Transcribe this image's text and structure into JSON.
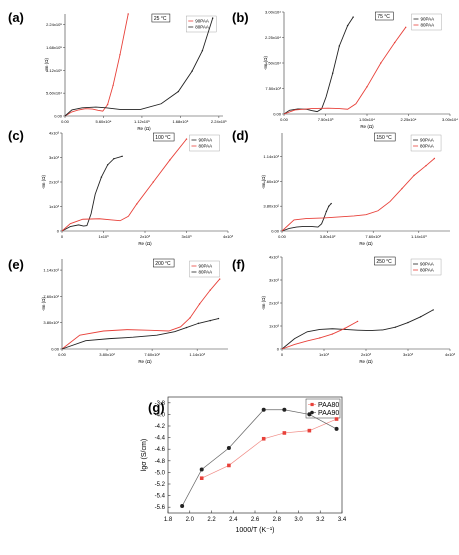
{
  "colors": {
    "red": "#e8413a",
    "black": "#222222"
  },
  "chart_data": [
    {
      "type": "scatter",
      "label": "(a)",
      "temperature": "25 °C",
      "xlabel": "Re (Ω)",
      "ylabel": "-Im (Ω)",
      "xlim": [
        0,
        230000
      ],
      "ylim": [
        0,
        250000
      ],
      "xticks": [
        "0.00",
        "5.60x10⁴",
        "1.12x10⁵",
        "1.68x10⁵",
        "2.24x10⁵"
      ],
      "yticks": [
        "0.00",
        "5.60x10⁴",
        "1.12x10⁵",
        "1.68x10⁵",
        "2.24x10⁵"
      ],
      "xtickvals": [
        0,
        56000,
        112000,
        168000,
        224000
      ],
      "ytickvals": [
        0,
        56000,
        112000,
        168000,
        224000
      ],
      "series": [
        {
          "name": "90PAA",
          "color": "red",
          "x": [
            0,
            10000,
            20000,
            30000,
            40000,
            48000,
            55000,
            62000,
            70000,
            80000,
            92000
          ],
          "y": [
            0,
            10000,
            15000,
            18000,
            17000,
            14000,
            12000,
            28000,
            75000,
            150000,
            250000
          ]
        },
        {
          "name": "80PAA",
          "color": "black",
          "x": [
            0,
            10000,
            25000,
            45000,
            60000,
            80000,
            110000,
            140000,
            165000,
            185000,
            200000,
            215000
          ],
          "y": [
            0,
            15000,
            20000,
            22000,
            20000,
            16000,
            16000,
            30000,
            60000,
            110000,
            160000,
            240000
          ]
        }
      ]
    },
    {
      "type": "scatter",
      "label": "(b)",
      "temperature": "75 °C",
      "xlabel": "Re (Ω)",
      "ylabel": "-Im (Ω)",
      "xlim": [
        0,
        30000
      ],
      "ylim": [
        0,
        30000
      ],
      "xticks": [
        "0.00",
        "7.50x10³",
        "1.50x10⁴",
        "2.25x10⁴",
        "3.00x10⁴"
      ],
      "yticks": [
        "0.00",
        "7.50x10³",
        "1.50x10⁴",
        "2.25x10⁴",
        "3.00x10⁴"
      ],
      "xtickvals": [
        0,
        7500,
        15000,
        22500,
        30000
      ],
      "ytickvals": [
        0,
        7500,
        15000,
        22500,
        30000
      ],
      "series": [
        {
          "name": "90PAA",
          "color": "black",
          "x": [
            0,
            1000,
            2500,
            4000,
            5000,
            6000,
            6800,
            7600,
            8800,
            10000,
            11500,
            12500
          ],
          "y": [
            0,
            1100,
            1500,
            1400,
            1000,
            700,
            1500,
            5000,
            12000,
            20000,
            26000,
            28500
          ]
        },
        {
          "name": "80PAA",
          "color": "red",
          "x": [
            0,
            2000,
            5000,
            8000,
            10000,
            11500,
            13000,
            15000,
            17500,
            20000,
            22000
          ],
          "y": [
            0,
            1200,
            1600,
            1700,
            1600,
            1400,
            3000,
            8000,
            15000,
            21000,
            25500
          ]
        }
      ]
    },
    {
      "type": "scatter",
      "label": "(c)",
      "temperature": "100 °C",
      "xlabel": "Re (Ω)",
      "ylabel": "-Im (Ω)",
      "xlim": [
        0,
        4000
      ],
      "ylim": [
        0,
        4000
      ],
      "xticks": [
        "0",
        "1x10³",
        "2x10³",
        "3x10³",
        "4x10³"
      ],
      "yticks": [
        "0",
        "1x10³",
        "2x10³",
        "3x10³",
        "4x10³"
      ],
      "xtickvals": [
        0,
        1000,
        2000,
        3000,
        4000
      ],
      "ytickvals": [
        0,
        1000,
        2000,
        3000,
        4000
      ],
      "series": [
        {
          "name": "90PAA",
          "color": "black",
          "x": [
            0,
            200,
            400,
            520,
            600,
            700,
            800,
            950,
            1100,
            1250,
            1450
          ],
          "y": [
            0,
            180,
            250,
            200,
            220,
            700,
            1500,
            2200,
            2700,
            2950,
            3050
          ]
        },
        {
          "name": "80PAA",
          "color": "red",
          "x": [
            0,
            200,
            500,
            900,
            1200,
            1400,
            1600,
            1800,
            2200,
            2600,
            3000
          ],
          "y": [
            0,
            300,
            480,
            500,
            450,
            420,
            600,
            1100,
            2000,
            2900,
            3750
          ]
        }
      ]
    },
    {
      "type": "scatter",
      "label": "(d)",
      "temperature": "150 °C",
      "xlabel": "Re (Ω)",
      "ylabel": "-Im (Ω)",
      "xlim": [
        0,
        1400
      ],
      "ylim": [
        0,
        1500
      ],
      "xticks": [
        "0.00",
        "3.80x10²",
        "7.60x10²",
        "1.14x10³"
      ],
      "yticks": [
        "0.00",
        "3.80x10²",
        "7.60x10²",
        "1.14x10³"
      ],
      "xtickvals": [
        0,
        380,
        760,
        1140
      ],
      "ytickvals": [
        0,
        380,
        760,
        1140
      ],
      "series": [
        {
          "name": "90PAA",
          "color": "black",
          "x": [
            0,
            60,
            120,
            180,
            240,
            300,
            330,
            350,
            370,
            390,
            410
          ],
          "y": [
            0,
            40,
            60,
            70,
            70,
            60,
            110,
            200,
            300,
            380,
            420
          ]
        },
        {
          "name": "80PAA",
          "color": "red",
          "x": [
            0,
            100,
            200,
            350,
            600,
            700,
            800,
            900,
            1000,
            1100,
            1200,
            1270
          ],
          "y": [
            0,
            170,
            190,
            200,
            230,
            250,
            310,
            450,
            650,
            850,
            1000,
            1110
          ]
        }
      ]
    },
    {
      "type": "scatter",
      "label": "(e)",
      "temperature": "200 °C",
      "xlabel": "Re (Ω)",
      "ylabel": "-Im (Ω)",
      "xlim": [
        0,
        1400
      ],
      "ylim": [
        0,
        1300
      ],
      "xticks": [
        "0.00",
        "3.80x10²",
        "7.60x10²",
        "1.14x10³"
      ],
      "yticks": [
        "0.00",
        "3.80x10²",
        "7.60x10²",
        "1.14x10³"
      ],
      "xtickvals": [
        0,
        380,
        760,
        1140
      ],
      "ytickvals": [
        0,
        380,
        760,
        1140
      ],
      "series": [
        {
          "name": "90PAA",
          "color": "red",
          "x": [
            0,
            150,
            350,
            550,
            750,
            900,
            1000,
            1080,
            1160,
            1250,
            1330
          ],
          "y": [
            0,
            200,
            260,
            280,
            270,
            260,
            320,
            450,
            650,
            850,
            1010
          ]
        },
        {
          "name": "80PAA",
          "color": "black",
          "x": [
            0,
            200,
            400,
            600,
            800,
            950,
            1050,
            1150,
            1250,
            1320
          ],
          "y": [
            0,
            120,
            150,
            170,
            200,
            250,
            310,
            370,
            410,
            440
          ]
        }
      ]
    },
    {
      "type": "scatter",
      "label": "(f)",
      "temperature": "250 °C",
      "xlabel": "Re (Ω)",
      "ylabel": "-Im (Ω)",
      "xlim": [
        0,
        4000
      ],
      "ylim": [
        0,
        4000
      ],
      "xticks": [
        "0",
        "1x10³",
        "2x10³",
        "3x10³",
        "4x10³"
      ],
      "yticks": [
        "0",
        "1x10³",
        "2x10³",
        "3x10³",
        "4x10³"
      ],
      "xtickvals": [
        0,
        1000,
        2000,
        3000,
        4000
      ],
      "ytickvals": [
        0,
        1000,
        2000,
        3000,
        4000
      ],
      "series": [
        {
          "name": "90PAA",
          "color": "black",
          "x": [
            0,
            300,
            600,
            900,
            1200,
            1500,
            1800,
            2100,
            2400,
            2700,
            3000,
            3300,
            3600
          ],
          "y": [
            0,
            450,
            750,
            850,
            880,
            850,
            820,
            800,
            830,
            950,
            1150,
            1400,
            1700
          ]
        },
        {
          "name": "80PAA",
          "color": "red",
          "x": [
            0,
            300,
            600,
            900,
            1200,
            1500,
            1800
          ],
          "y": [
            0,
            200,
            350,
            480,
            650,
            900,
            1200
          ]
        }
      ]
    },
    {
      "type": "line",
      "label": "(g)",
      "xlabel": "1000/T (K⁻¹)",
      "ylabel": "lgσ (S/cm)",
      "xlim": [
        1.8,
        3.4
      ],
      "ylim": [
        -5.7,
        -3.7
      ],
      "xticks": [
        "1.8",
        "2.0",
        "2.2",
        "2.4",
        "2.6",
        "2.8",
        "3.0",
        "3.2",
        "3.4"
      ],
      "yticks": [
        "-5.6",
        "-5.4",
        "-5.2",
        "-5.0",
        "-4.8",
        "-4.6",
        "-4.4",
        "-4.2",
        "-4.0",
        "-3.8"
      ],
      "xtickvals": [
        1.8,
        2.0,
        2.2,
        2.4,
        2.6,
        2.8,
        3.0,
        3.2,
        3.4
      ],
      "ytickvals": [
        -5.6,
        -5.4,
        -5.2,
        -5.0,
        -4.8,
        -4.6,
        -4.4,
        -4.2,
        -4.0,
        -3.8
      ],
      "series": [
        {
          "name": "PAA80",
          "color": "red",
          "x": [
            2.11,
            2.36,
            2.68,
            2.87,
            3.1,
            3.35
          ],
          "y": [
            -5.1,
            -4.88,
            -4.42,
            -4.32,
            -4.28,
            -4.08
          ]
        },
        {
          "name": "PAA90",
          "color": "black",
          "x": [
            1.93,
            2.11,
            2.36,
            2.68,
            2.87,
            3.1,
            3.35
          ],
          "y": [
            -5.58,
            -4.95,
            -4.58,
            -3.92,
            -3.92,
            -4.0,
            -4.25
          ]
        }
      ]
    }
  ]
}
